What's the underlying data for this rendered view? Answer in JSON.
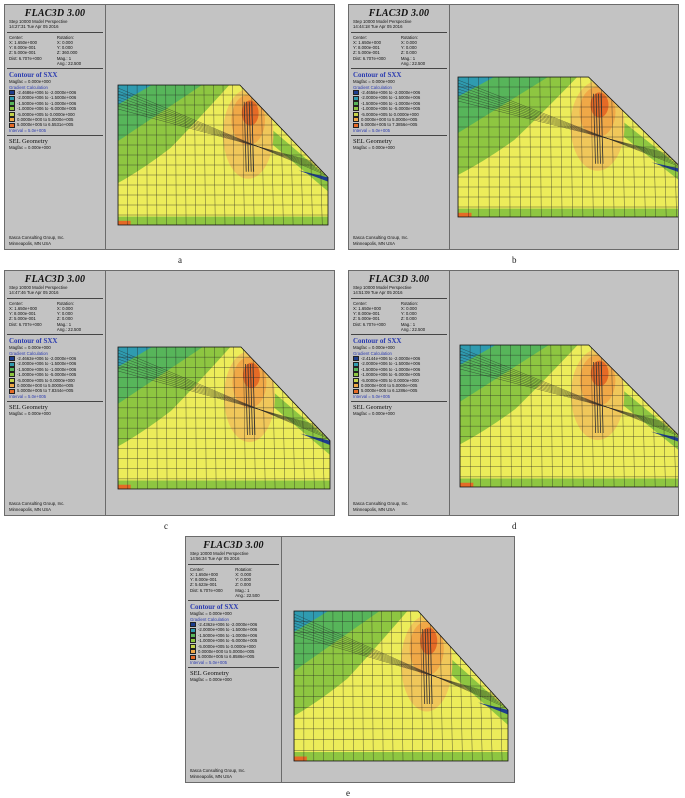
{
  "common": {
    "app_title": "FLAC3D 3.00",
    "center_label": "Center:",
    "rotation_label": "Rotation:",
    "contour_title": "Contour of SXX",
    "gradient_label": "Gradient Calculation",
    "sel_title": "SEL Geometry",
    "magfac": "Magfac = 0.000e+000",
    "footer1": "Itasca Consulting Group, Inc.",
    "footer2": "Minneapolis, MN  USA",
    "colors": [
      "#1d3d8e",
      "#2f9bb0",
      "#57b55a",
      "#8ec641",
      "#c4d34a",
      "#ecec5a",
      "#f0a847",
      "#e56a26"
    ]
  },
  "panels": [
    {
      "caption": "a",
      "step": "Step 10000  Model Perspective",
      "time": "14:27:31 Tue Apr 05 2016",
      "center": [
        "X: 1.650e+000",
        "Y: 8.000e-001",
        "Z: 5.000e-001",
        "Dist: 6.707e+000"
      ],
      "rotation": [
        "X:   0.000",
        "Y:   0.000",
        "Z:  360.000",
        "Mag.:      1",
        "Ang.:  22.500"
      ],
      "legend": [
        "-2.4686e+006 to -2.0000e+006",
        "-2.0000e+006 to -1.5000e+006",
        "-1.5000e+006 to -1.0000e+006",
        "-1.0000e+006 to -5.0000e+005",
        "-5.0000e+005 to  0.0000e+000",
        "0.0000e+000 to  5.0000e+005",
        "5.0000e+005 to  6.5531e+005"
      ],
      "interval": "Interval = 5.0e+005"
    },
    {
      "caption": "b",
      "step": "Step 10000  Model Perspective",
      "time": "14:44:18 Tue Apr 05 2016",
      "center": [
        "X: 1.650e+000",
        "Y: 8.000e-001",
        "Z: 5.000e-001",
        "Dist: 6.707e+000"
      ],
      "rotation": [
        "X:   0.000",
        "Y:   0.000",
        "Z:   0.000",
        "Mag.:      1",
        "Ang.:  22.500"
      ],
      "legend": [
        "-2.4656e+006 to -2.0000e+006",
        "-2.0000e+006 to -1.5000e+006",
        "-1.5000e+006 to -1.0000e+006",
        "-1.0000e+006 to -5.0000e+005",
        "-5.0000e+005 to  0.0000e+000",
        "0.0000e+000 to  5.0000e+005",
        "5.0000e+005 to  7.3856e+005"
      ],
      "interval": "Interval = 5.0e+005"
    },
    {
      "caption": "c",
      "step": "Step 10000  Model Perspective",
      "time": "14:47:46 Tue Apr 05 2016",
      "center": [
        "X: 1.650e+000",
        "Y: 8.000e-001",
        "Z: 5.000e-001",
        "Dist: 6.707e+000"
      ],
      "rotation": [
        "X:   0.000",
        "Y:   0.000",
        "Z:   0.000",
        "Mag.:      1",
        "Ang.:  22.500"
      ],
      "legend": [
        "-2.4663e+006 to -2.0000e+006",
        "-2.0000e+006 to -1.5000e+006",
        "-1.5000e+006 to -1.0000e+006",
        "-1.0000e+006 to -5.0000e+005",
        "-5.0000e+005 to  0.0000e+000",
        "0.0000e+000 to  5.0000e+005",
        "5.0000e+005 to  7.8344e+005"
      ],
      "interval": "Interval = 5.0e+005"
    },
    {
      "caption": "d",
      "step": "Step 10000  Model Perspective",
      "time": "14:51:09 Tue Apr 05 2016",
      "center": [
        "X: 1.650e+000",
        "Y: 8.000e-001",
        "Z: 5.000e-001",
        "Dist: 6.707e+000"
      ],
      "rotation": [
        "X:   0.000",
        "Y:   0.000",
        "Z:   0.000",
        "Mag.:      1",
        "Ang.:  22.500"
      ],
      "legend": [
        "-2.4144e+006 to -2.0000e+006",
        "-2.0000e+006 to -1.5000e+006",
        "-1.5000e+006 to -1.0000e+006",
        "-1.0000e+006 to -5.0000e+005",
        "-5.0000e+005 to  0.0000e+000",
        "0.0000e+000 to  5.0000e+005",
        "5.0000e+005 to  6.1286e+005"
      ],
      "interval": "Interval = 5.0e+005"
    },
    {
      "caption": "e",
      "step": "Step 10000  Model Perspective",
      "time": "14:56:34 Tue Apr 05 2016",
      "center": [
        "X: 1.650e+000",
        "Y: 8.000e-001",
        "Z: 5.623e-001",
        "Dist: 6.707e+000"
      ],
      "rotation": [
        "X:   0.000",
        "Y:   0.000",
        "Z:   0.000",
        "Mag.:      1",
        "Ang.:  22.500"
      ],
      "legend": [
        "-2.4362e+006 to -2.0000e+006",
        "-2.0000e+006 to -1.5000e+006",
        "-1.5000e+006 to -1.0000e+006",
        "-1.0000e+006 to -5.0000e+005",
        "-5.0000e+005 to  0.0000e+000",
        "0.0000e+000 to  5.0000e+005",
        "5.0000e+005 to  6.8586e+005"
      ],
      "interval": "Interval = 5.0e+005"
    }
  ]
}
